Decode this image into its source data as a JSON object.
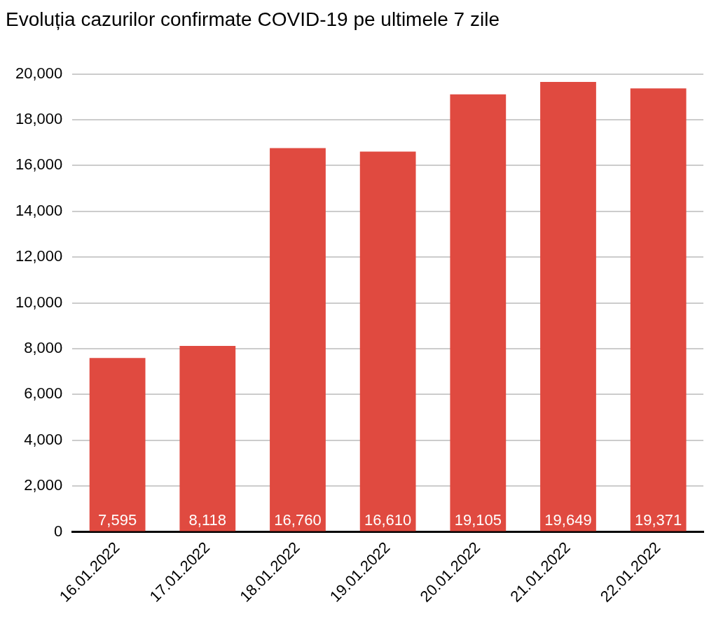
{
  "chart_data": {
    "type": "bar",
    "title": "Evoluția cazurilor confirmate COVID-19 pe ultimele 7 zile",
    "categories": [
      "16.01.2022",
      "17.01.2022",
      "18.01.2022",
      "19.01.2022",
      "20.01.2022",
      "21.01.2022",
      "22.01.2022"
    ],
    "values": [
      7595,
      8118,
      16760,
      16610,
      19105,
      19649,
      19371
    ],
    "color": "#e04a40",
    "value_labels": [
      "7,595",
      "8,118",
      "16,760",
      "16,610",
      "19,105",
      "19,649",
      "19,371"
    ],
    "ylim": [
      0,
      20000
    ],
    "yticks": [
      0,
      {
        "value": 2000,
        "label": "2,000"
      },
      {
        "value": 4000,
        "label": "4,000"
      },
      {
        "value": 6000,
        "label": "6,000"
      },
      {
        "value": 8000,
        "label": "8,000"
      },
      {
        "value": 10000,
        "label": "10,000"
      },
      {
        "value": 12000,
        "label": "12,000"
      },
      {
        "value": 14000,
        "label": "14,000"
      },
      {
        "value": 16000,
        "label": "16,000"
      },
      {
        "value": 18000,
        "label": "18,000"
      },
      {
        "value": 20000,
        "label": "20,000"
      }
    ],
    "grid": "y",
    "legend": false
  }
}
